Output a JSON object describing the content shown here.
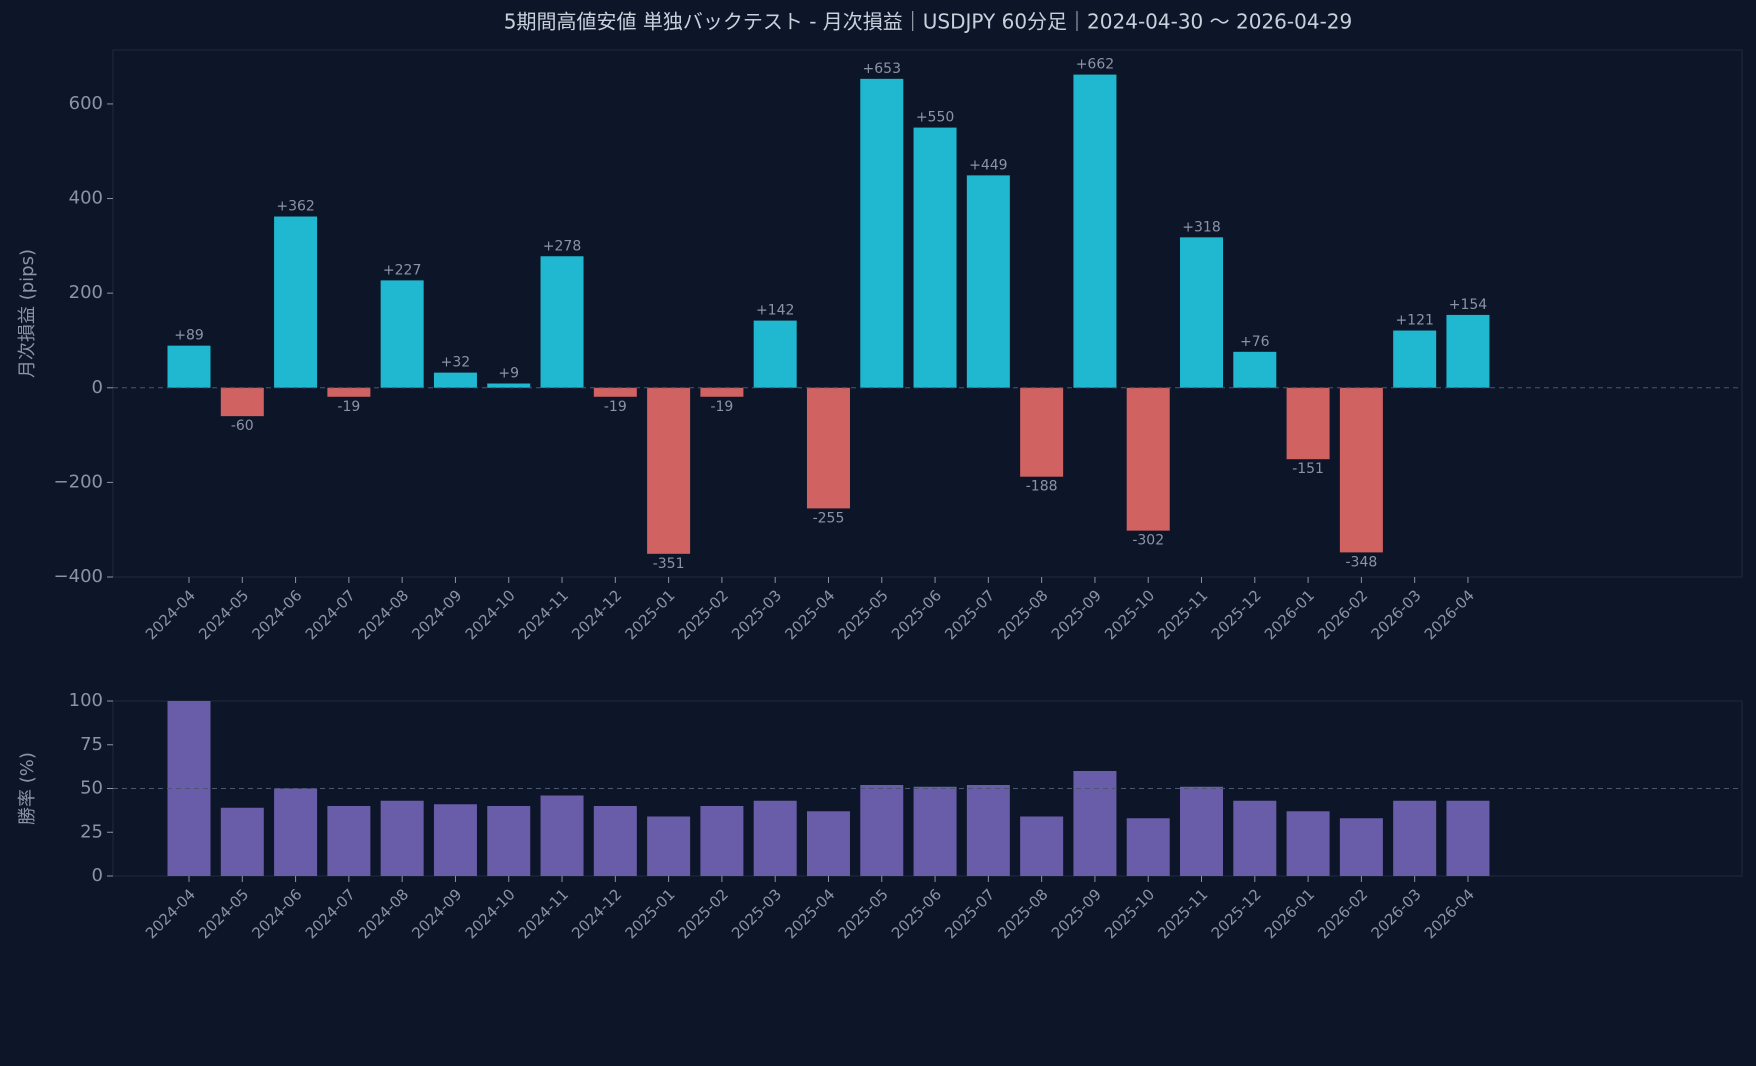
{
  "title": "5期間高値安値 単独バックテスト - 月次損益｜USDJPY 60分足｜2024-04-30 〜 2026-04-29",
  "chart_data": [
    {
      "type": "bar",
      "ylabel": "月次損益 (pips)",
      "categories": [
        "2024-04",
        "2024-05",
        "2024-06",
        "2024-07",
        "2024-08",
        "2024-09",
        "2024-10",
        "2024-11",
        "2024-12",
        "2025-01",
        "2025-02",
        "2025-03",
        "2025-04",
        "2025-05",
        "2025-06",
        "2025-07",
        "2025-08",
        "2025-09",
        "2025-10",
        "2025-11",
        "2025-12",
        "2026-01",
        "2026-02",
        "2026-03",
        "2026-04"
      ],
      "values": [
        89,
        -60,
        362,
        -19,
        227,
        32,
        9,
        278,
        -19,
        -351,
        -19,
        142,
        -255,
        653,
        550,
        449,
        -188,
        662,
        -302,
        318,
        76,
        -151,
        -348,
        121,
        154
      ],
      "value_labels": [
        "+89",
        "-60",
        "+362",
        "-19",
        "+227",
        "+32",
        "+9",
        "+278",
        "-19",
        "-351",
        "-19",
        "+142",
        "-255",
        "+653",
        "+550",
        "+449",
        "-188",
        "+662",
        "-302",
        "+318",
        "+76",
        "-151",
        "-348",
        "+121",
        "+154"
      ],
      "color": "#1fb8d0",
      "negative_color": "#d06262",
      "ylim": [
        -400,
        714
      ],
      "yticks": [
        {
          "value": -400,
          "label": "−400"
        },
        {
          "value": -200,
          "label": "−200"
        },
        0,
        200,
        400,
        600
      ],
      "hline": 0
    },
    {
      "type": "bar",
      "ylabel": "勝率 (%)",
      "categories": [
        "2024-04",
        "2024-05",
        "2024-06",
        "2024-07",
        "2024-08",
        "2024-09",
        "2024-10",
        "2024-11",
        "2024-12",
        "2025-01",
        "2025-02",
        "2025-03",
        "2025-04",
        "2025-05",
        "2025-06",
        "2025-07",
        "2025-08",
        "2025-09",
        "2025-10",
        "2025-11",
        "2025-12",
        "2026-01",
        "2026-02",
        "2026-03",
        "2026-04"
      ],
      "values": [
        100,
        39,
        50,
        40,
        43,
        41,
        40,
        46,
        40,
        34,
        40,
        43,
        37,
        52,
        51,
        52,
        34,
        60,
        33,
        51,
        43,
        37,
        33,
        43,
        43
      ],
      "color": "#695ca8",
      "ylim": [
        0,
        100
      ],
      "yticks": [
        0,
        25,
        50,
        75,
        100
      ],
      "hline": 50
    }
  ]
}
